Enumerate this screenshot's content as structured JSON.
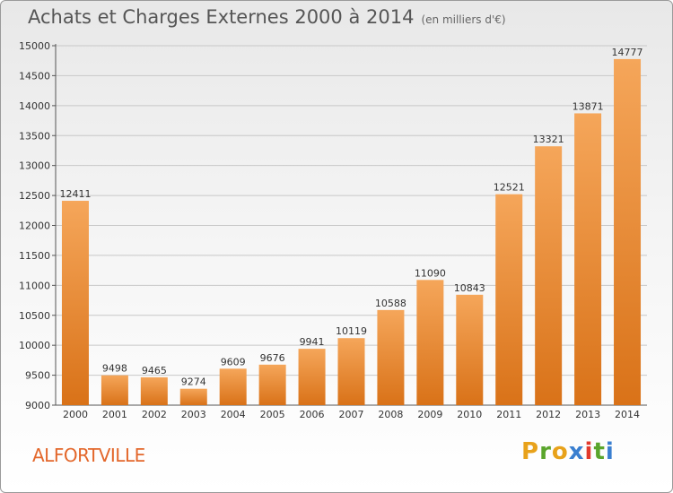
{
  "title": "Achats et Charges Externes 2000 à 2014",
  "subtitle": "(en milliers d'€)",
  "city": "ALFORTVILLE",
  "brand": "Proxiti",
  "colors": {
    "bar_light": "#f5a65a",
    "bar_dark": "#d97218",
    "city": "#e3672b"
  },
  "chart_data": {
    "type": "bar",
    "title": "Achats et Charges Externes 2000 à 2014",
    "categories": [
      "2000",
      "2001",
      "2002",
      "2003",
      "2004",
      "2005",
      "2006",
      "2007",
      "2008",
      "2009",
      "2010",
      "2011",
      "2012",
      "2013",
      "2014"
    ],
    "values": [
      12411,
      9498,
      9465,
      9274,
      9609,
      9676,
      9941,
      10119,
      10588,
      11090,
      10843,
      12521,
      13321,
      13871,
      14777
    ],
    "ylim": [
      9000,
      15000
    ],
    "yticks": [
      9000,
      9500,
      10000,
      10500,
      11000,
      11500,
      12000,
      12500,
      13000,
      13500,
      14000,
      14500,
      15000
    ],
    "xlabel": "",
    "ylabel": "",
    "grid": true
  }
}
